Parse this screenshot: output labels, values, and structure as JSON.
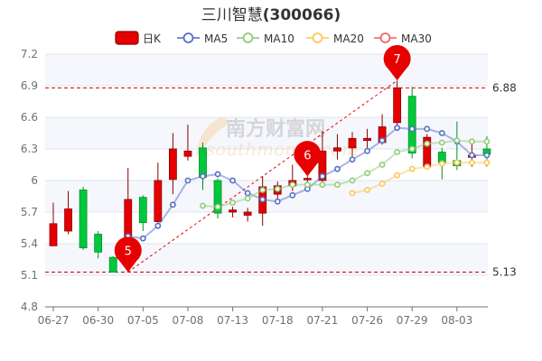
{
  "title": {
    "name": "三川智慧",
    "code": "(300066)"
  },
  "watermark": {
    "cn": "南方财富网",
    "en": "southmoney.com"
  },
  "legend": [
    {
      "label": "日K",
      "type": "candle",
      "color": "#e60000"
    },
    {
      "label": "MA5",
      "type": "line",
      "color": "#5470c6"
    },
    {
      "label": "MA10",
      "type": "line",
      "color": "#91cc75"
    },
    {
      "label": "MA20",
      "type": "line",
      "color": "#fac858"
    },
    {
      "label": "MA30",
      "type": "line",
      "color": "#ee6666"
    }
  ],
  "chart_data": {
    "type": "candlestick",
    "title": "三川智慧(300066)",
    "ylim": [
      4.8,
      7.2
    ],
    "yticks": [
      "7.2",
      "6.9",
      "6.6",
      "6.3",
      "6",
      "5.7",
      "5.4",
      "5.1",
      "4.8"
    ],
    "ytick_values": [
      7.2,
      6.9,
      6.6,
      6.3,
      6.0,
      5.7,
      5.4,
      5.1,
      4.8
    ],
    "xtick_labels": [
      {
        "index": 0,
        "label": "06-27"
      },
      {
        "index": 3,
        "label": "06-30"
      },
      {
        "index": 6,
        "label": "07-05"
      },
      {
        "index": 9,
        "label": "07-08"
      },
      {
        "index": 12,
        "label": "07-13"
      },
      {
        "index": 15,
        "label": "07-18"
      },
      {
        "index": 18,
        "label": "07-21"
      },
      {
        "index": 21,
        "label": "07-26"
      },
      {
        "index": 24,
        "label": "07-29"
      },
      {
        "index": 27,
        "label": "08-03"
      }
    ],
    "up_color": "#e60000",
    "down_color": "#00c83c",
    "candles": [
      [
        5.38,
        5.59,
        5.38,
        5.79
      ],
      [
        5.52,
        5.73,
        5.49,
        5.9
      ],
      [
        5.91,
        5.36,
        5.34,
        5.94
      ],
      [
        5.49,
        5.32,
        5.26,
        5.52
      ],
      [
        5.27,
        5.13,
        5.14,
        5.28
      ],
      [
        5.46,
        5.82,
        5.13,
        6.12
      ],
      [
        5.84,
        5.6,
        5.52,
        5.86
      ],
      [
        5.61,
        6.0,
        5.6,
        6.17
      ],
      [
        6.01,
        6.3,
        5.87,
        6.45
      ],
      [
        6.23,
        6.28,
        6.19,
        6.53
      ],
      [
        6.31,
        6.03,
        5.91,
        6.36
      ],
      [
        6.0,
        5.69,
        5.64,
        6.02
      ],
      [
        5.7,
        5.72,
        5.65,
        5.75
      ],
      [
        5.67,
        5.7,
        5.61,
        5.74
      ],
      [
        5.69,
        5.94,
        5.57,
        6.04
      ],
      [
        5.87,
        5.95,
        5.83,
        5.99
      ],
      [
        5.95,
        6.0,
        5.9,
        6.15
      ],
      [
        6.01,
        6.02,
        5.98,
        6.04
      ],
      [
        6.0,
        6.28,
        5.99,
        6.47
      ],
      [
        6.28,
        6.31,
        6.2,
        6.44
      ],
      [
        6.31,
        6.4,
        6.23,
        6.46
      ],
      [
        6.38,
        6.4,
        6.31,
        6.49
      ],
      [
        6.36,
        6.51,
        6.34,
        6.63
      ],
      [
        6.55,
        6.88,
        6.53,
        6.95
      ],
      [
        6.8,
        6.26,
        6.21,
        6.89
      ],
      [
        6.13,
        6.41,
        6.12,
        6.44
      ],
      [
        6.27,
        6.17,
        6.01,
        6.31
      ],
      [
        6.19,
        6.14,
        6.1,
        6.56
      ],
      [
        6.22,
        6.24,
        6.13,
        6.35
      ],
      [
        6.3,
        6.25,
        6.13,
        6.42
      ]
    ],
    "candle_format": [
      "open",
      "close",
      "low",
      "high"
    ],
    "series": [
      {
        "name": "MA5",
        "color": "#5470c6",
        "values": [
          null,
          null,
          null,
          null,
          null,
          5.47,
          5.45,
          5.57,
          5.77,
          6.0,
          6.04,
          6.06,
          6.0,
          5.88,
          5.82,
          5.8,
          5.86,
          5.92,
          6.04,
          6.11,
          6.2,
          6.28,
          6.38,
          6.5,
          6.49,
          6.49,
          6.45,
          6.37,
          6.24,
          6.24
        ]
      },
      {
        "name": "MA10",
        "color": "#91cc75",
        "values": [
          null,
          null,
          null,
          null,
          null,
          null,
          null,
          null,
          null,
          null,
          5.76,
          5.75,
          5.79,
          5.83,
          5.91,
          5.92,
          5.96,
          5.96,
          5.96,
          5.96,
          6.0,
          6.07,
          6.15,
          6.27,
          6.3,
          6.35,
          6.36,
          6.38,
          6.37,
          6.37
        ]
      },
      {
        "name": "MA20",
        "color": "#fac858",
        "values": [
          null,
          null,
          null,
          null,
          null,
          null,
          null,
          null,
          null,
          null,
          null,
          null,
          null,
          null,
          null,
          null,
          null,
          null,
          null,
          null,
          5.88,
          5.91,
          5.97,
          6.05,
          6.11,
          6.13,
          6.16,
          6.17,
          6.17,
          6.17
        ]
      },
      {
        "name": "MA30",
        "color": "#ee6666",
        "values": []
      }
    ],
    "mark_lines": [
      {
        "value": 6.88,
        "label": "6.88"
      },
      {
        "value": 5.13,
        "label": "5.13"
      }
    ],
    "mark_points": [
      {
        "label": "5",
        "index": 5,
        "value": 5.13
      },
      {
        "label": "6",
        "index": 17,
        "value": 6.04
      },
      {
        "label": "7",
        "index": 23,
        "value": 6.95
      }
    ],
    "trend_line": {
      "from": {
        "index": 5,
        "value": 5.13
      },
      "to": {
        "index": 23,
        "value": 6.95
      }
    },
    "grid": true
  }
}
